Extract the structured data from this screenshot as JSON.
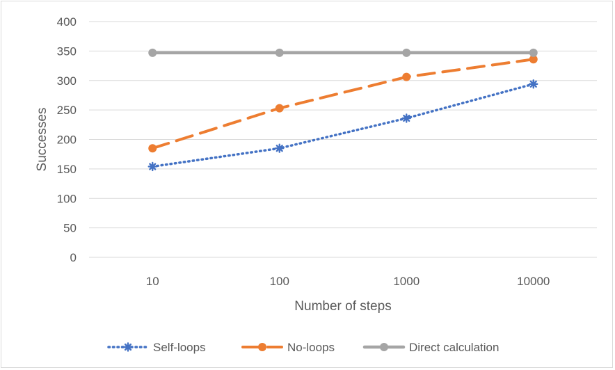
{
  "chart_data": {
    "type": "line",
    "categories": [
      "10",
      "100",
      "1000",
      "10000"
    ],
    "xlabel": "Number of steps",
    "ylabel": "Successes",
    "ylim": [
      0,
      400
    ],
    "yticks": [
      0,
      50,
      100,
      150,
      200,
      250,
      300,
      350,
      400
    ],
    "grid": true,
    "legend_position": "bottom",
    "series": [
      {
        "name": "Self-loops",
        "values": [
          154,
          185,
          236,
          294
        ],
        "color": "#4472c4",
        "dash": "dotted",
        "marker": "star"
      },
      {
        "name": "No-loops",
        "values": [
          185,
          253,
          306,
          336
        ],
        "color": "#ed7d31",
        "dash": "long-dash",
        "marker": "circle"
      },
      {
        "name": "Direct calculation",
        "values": [
          347,
          347,
          347,
          347
        ],
        "color": "#a5a5a5",
        "dash": "solid",
        "marker": "circle"
      }
    ]
  }
}
